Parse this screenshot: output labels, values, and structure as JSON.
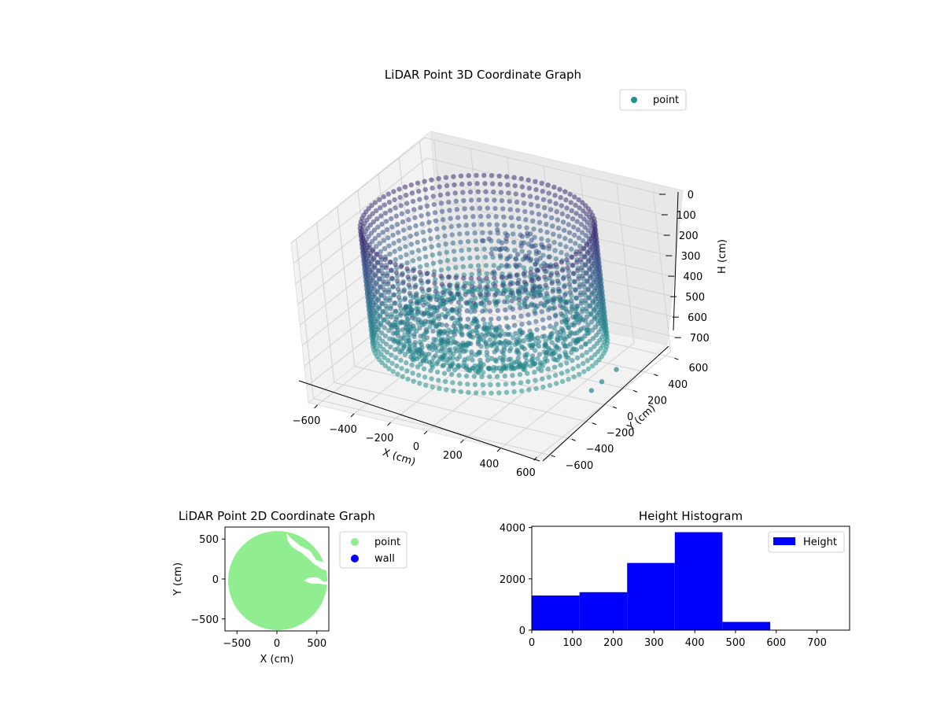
{
  "chart_data": [
    {
      "type": "scatter",
      "projection": "3d",
      "title": "LiDAR Point 3D Coordinate Graph",
      "xlabel": "X (cm)",
      "ylabel": "Y (cm)",
      "zlabel": "H (cm)",
      "xticks": [
        "−600",
        "−400",
        "−200",
        "0",
        "200",
        "400",
        "600"
      ],
      "yticks": [
        "−600",
        "−400",
        "−200",
        "0",
        "200",
        "400",
        "600"
      ],
      "zticks": [
        "0",
        "100",
        "200",
        "300",
        "400",
        "500",
        "600",
        "700"
      ],
      "zaxis_inverted": true,
      "xlim": [
        -650,
        650
      ],
      "ylim": [
        -650,
        650
      ],
      "zlim": [
        0,
        780
      ],
      "legend": {
        "entries": [
          "point"
        ],
        "placement": "top-right"
      },
      "grid": true,
      "colormap": "viridis",
      "series": [
        {
          "name": "point",
          "color": "#21918c"
        }
      ]
    },
    {
      "type": "scatter",
      "title": "LiDAR Point 2D Coordinate Graph",
      "xlabel": "X (cm)",
      "ylabel": "Y (cm)",
      "xticks": [
        "−500",
        "0",
        "500"
      ],
      "yticks": [
        "500",
        "0",
        "−500"
      ],
      "xlim": [
        -650,
        650
      ],
      "ylim": [
        -650,
        650
      ],
      "legend": {
        "entries": [
          "point",
          "wall"
        ],
        "placement": "outside-right"
      },
      "series": [
        {
          "name": "point",
          "color": "#90ee90"
        },
        {
          "name": "wall",
          "color": "#0000ff"
        }
      ]
    },
    {
      "type": "bar",
      "subtype": "histogram",
      "title": "Height Histogram",
      "xticks": [
        "0",
        "100",
        "200",
        "300",
        "400",
        "500",
        "600",
        "700"
      ],
      "yticks": [
        "0",
        "2000",
        "4000"
      ],
      "bins": [
        {
          "x0": 0,
          "x1": 117,
          "value": 1350
        },
        {
          "x0": 117,
          "x1": 234,
          "value": 1480
        },
        {
          "x0": 234,
          "x1": 351,
          "value": 2620
        },
        {
          "x0": 351,
          "x1": 468,
          "value": 3820
        },
        {
          "x0": 468,
          "x1": 585,
          "value": 320
        }
      ],
      "xlim": [
        0,
        780
      ],
      "ylim": [
        0,
        4050
      ],
      "legend": {
        "entries": [
          "Height"
        ],
        "placement": "top-right"
      },
      "series": [
        {
          "name": "Height",
          "color": "#0000ff"
        }
      ]
    }
  ]
}
